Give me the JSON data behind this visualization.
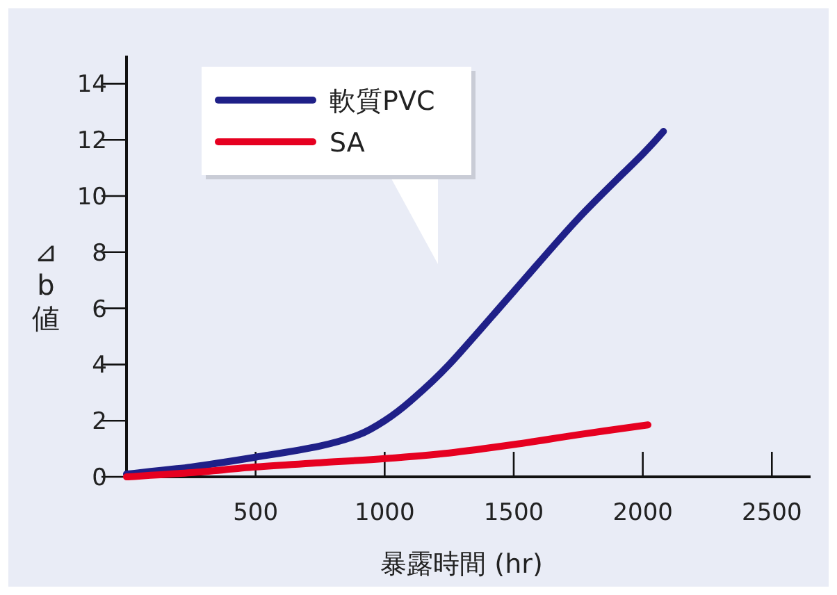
{
  "chart_data": {
    "type": "line",
    "xlabel": "暴露時間 (hr)",
    "ylabel": "⊿b値",
    "xlim": [
      0,
      2650
    ],
    "ylim": [
      0,
      15
    ],
    "xticks": [
      500,
      1000,
      1500,
      2000,
      2500
    ],
    "yticks": [
      0,
      2,
      4,
      6,
      8,
      10,
      12,
      14
    ],
    "legend": "top left",
    "grid": false,
    "marker": "none",
    "line_style": "solid",
    "series": [
      {
        "name": "軟質PVC",
        "color": "#1f2088",
        "x": [
          0,
          250,
          500,
          750,
          900,
          1000,
          1100,
          1250,
          1500,
          1750,
          2000,
          2080
        ],
        "values": [
          0.1,
          0.35,
          0.7,
          1.1,
          1.5,
          2.0,
          2.7,
          4.0,
          6.6,
          9.2,
          11.5,
          12.3
        ]
      },
      {
        "name": "SA",
        "color": "#e60020",
        "x": [
          0,
          250,
          500,
          750,
          1000,
          1250,
          1500,
          1750,
          2020
        ],
        "values": [
          0,
          0.15,
          0.35,
          0.5,
          0.65,
          0.85,
          1.15,
          1.5,
          1.85
        ]
      }
    ]
  }
}
